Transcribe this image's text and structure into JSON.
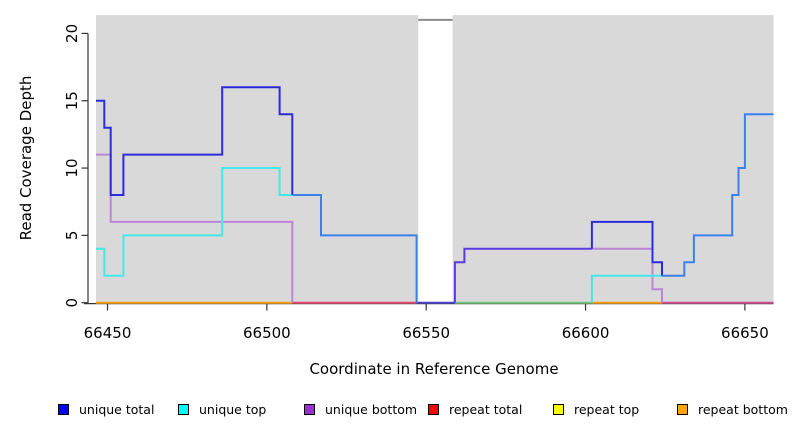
{
  "chart_data": {
    "type": "line",
    "title": "",
    "xlabel": "Coordinate in Reference Genome",
    "ylabel": "Read Coverage Depth",
    "xlim": [
      66446,
      66659
    ],
    "ylim": [
      0,
      21.4
    ],
    "x_ticks": [
      66450,
      66500,
      66550,
      66600,
      66650
    ],
    "y_ticks": [
      0,
      5,
      10,
      15,
      20
    ],
    "grid": false,
    "panel_bg": "#d9d9d9",
    "legend_position": "bottom",
    "series": [
      {
        "name": "unique total",
        "color": "#0000ff",
        "steps": [
          [
            66446,
            15
          ],
          [
            66449,
            13
          ],
          [
            66451,
            8
          ],
          [
            66455,
            11
          ],
          [
            66486,
            16
          ],
          [
            66504,
            14
          ],
          [
            66508,
            8
          ],
          [
            66517,
            5
          ],
          [
            66547,
            0
          ],
          [
            66559,
            3
          ],
          [
            66562,
            4
          ],
          [
            66602,
            6
          ],
          [
            66621,
            3
          ],
          [
            66624,
            2
          ],
          [
            66631,
            3
          ],
          [
            66634,
            5
          ],
          [
            66646,
            8
          ],
          [
            66648,
            10
          ],
          [
            66650,
            14
          ],
          [
            66659,
            14
          ]
        ]
      },
      {
        "name": "unique top",
        "color": "#00ffff",
        "steps": [
          [
            66446,
            4
          ],
          [
            66449,
            2
          ],
          [
            66455,
            5
          ],
          [
            66486,
            10
          ],
          [
            66504,
            8
          ],
          [
            66517,
            5
          ],
          [
            66547,
            0
          ],
          [
            66602,
            2
          ],
          [
            66631,
            3
          ],
          [
            66634,
            5
          ],
          [
            66646,
            8
          ],
          [
            66648,
            10
          ],
          [
            66650,
            14
          ],
          [
            66659,
            14
          ]
        ]
      },
      {
        "name": "unique bottom",
        "color": "#9932cc",
        "steps": [
          [
            66446,
            11
          ],
          [
            66451,
            6
          ],
          [
            66508,
            0
          ],
          [
            66559,
            3
          ],
          [
            66562,
            4
          ],
          [
            66621,
            1
          ],
          [
            66624,
            0
          ],
          [
            66659,
            0
          ]
        ]
      },
      {
        "name": "repeat total",
        "color": "#ff0000",
        "steps": [
          [
            66446,
            0
          ],
          [
            66659,
            0
          ]
        ]
      },
      {
        "name": "repeat top",
        "color": "#ffff00",
        "steps": [
          [
            66446,
            0
          ],
          [
            66659,
            0
          ]
        ]
      },
      {
        "name": "repeat bottom",
        "color": "#ffa500",
        "steps": [
          [
            66446,
            0
          ],
          [
            66659,
            0
          ]
        ]
      }
    ],
    "masked_region": {
      "x_start": 66547.5,
      "x_end": 66558.3,
      "cap_value": 21,
      "fill": "#ffffff",
      "cap_color": "#8c8c8c"
    },
    "rendered_lines": [
      {
        "color": "#ff9e19",
        "w": 2,
        "pts": [
          [
            66446,
            0
          ],
          [
            66508,
            0
          ]
        ]
      },
      {
        "color": "#e04a6e",
        "w": 2,
        "pts": [
          [
            66508,
            0
          ],
          [
            66547,
            0
          ]
        ]
      },
      {
        "color": "#4b44c4",
        "w": 2,
        "pts": [
          [
            66547,
            0
          ],
          [
            66559,
            0
          ]
        ]
      },
      {
        "color": "#74c47e",
        "w": 2,
        "pts": [
          [
            66559,
            0
          ],
          [
            66602,
            0
          ]
        ]
      },
      {
        "color": "#ff9e19",
        "w": 2,
        "pts": [
          [
            66602,
            0
          ],
          [
            66624,
            0
          ]
        ]
      },
      {
        "color": "#ce4f8e",
        "w": 2,
        "pts": [
          [
            66624,
            0
          ],
          [
            66659,
            0
          ]
        ]
      },
      {
        "color": "#bc86d8",
        "w": 2,
        "pts": [
          [
            66446,
            11
          ],
          [
            66451,
            11
          ],
          [
            66451,
            6
          ],
          [
            66508,
            6
          ],
          [
            66508,
            0
          ]
        ]
      },
      {
        "color": "#bc86d8",
        "w": 2,
        "pts": [
          [
            66602,
            4
          ],
          [
            66621,
            4
          ],
          [
            66621,
            1
          ],
          [
            66624,
            1
          ],
          [
            66624,
            0
          ]
        ]
      },
      {
        "color": "#45e8e8",
        "w": 2,
        "pts": [
          [
            66446,
            4
          ],
          [
            66449,
            4
          ],
          [
            66449,
            2
          ],
          [
            66455,
            2
          ],
          [
            66455,
            5
          ],
          [
            66486,
            5
          ],
          [
            66486,
            10
          ],
          [
            66504,
            10
          ],
          [
            66504,
            8
          ],
          [
            66508,
            8
          ]
        ]
      },
      {
        "color": "#45e8e8",
        "w": 2,
        "pts": [
          [
            66602,
            0
          ],
          [
            66602,
            2
          ],
          [
            66624,
            2
          ]
        ]
      },
      {
        "color": "#5a3be2",
        "w": 2,
        "pts": [
          [
            66559,
            0
          ],
          [
            66559,
            3
          ],
          [
            66562,
            3
          ],
          [
            66562,
            4
          ],
          [
            66602,
            4
          ]
        ]
      },
      {
        "color": "#2c2cdb",
        "w": 2,
        "pts": [
          [
            66446,
            15
          ],
          [
            66449,
            15
          ],
          [
            66449,
            13
          ],
          [
            66451,
            13
          ],
          [
            66451,
            8
          ],
          [
            66455,
            8
          ],
          [
            66455,
            11
          ],
          [
            66486,
            11
          ],
          [
            66486,
            16
          ],
          [
            66504,
            16
          ],
          [
            66504,
            14
          ],
          [
            66508,
            14
          ],
          [
            66508,
            8
          ]
        ]
      },
      {
        "color": "#2c2cdb",
        "w": 2,
        "pts": [
          [
            66602,
            4
          ],
          [
            66602,
            6
          ],
          [
            66621,
            6
          ],
          [
            66621,
            3
          ],
          [
            66624,
            3
          ],
          [
            66624,
            2
          ]
        ]
      },
      {
        "color": "#3c80ec",
        "w": 2,
        "pts": [
          [
            66508,
            8
          ],
          [
            66517,
            8
          ],
          [
            66517,
            5
          ],
          [
            66547,
            5
          ],
          [
            66547,
            0
          ]
        ]
      },
      {
        "color": "#3c80ec",
        "w": 2,
        "pts": [
          [
            66624,
            2
          ],
          [
            66631,
            2
          ],
          [
            66631,
            3
          ],
          [
            66634,
            3
          ],
          [
            66634,
            5
          ],
          [
            66646,
            5
          ],
          [
            66646,
            8
          ],
          [
            66648,
            8
          ],
          [
            66648,
            10
          ],
          [
            66650,
            10
          ],
          [
            66650,
            14
          ],
          [
            66659,
            14
          ]
        ]
      }
    ]
  },
  "legend": {
    "items": [
      {
        "label": "unique total",
        "color": "#0000ff"
      },
      {
        "label": "unique top",
        "color": "#00ffff"
      },
      {
        "label": "unique bottom",
        "color": "#9932cc"
      },
      {
        "label": "repeat total",
        "color": "#ff0000"
      },
      {
        "label": "repeat top",
        "color": "#ffff00"
      },
      {
        "label": "repeat bottom",
        "color": "#ffa500"
      }
    ]
  }
}
